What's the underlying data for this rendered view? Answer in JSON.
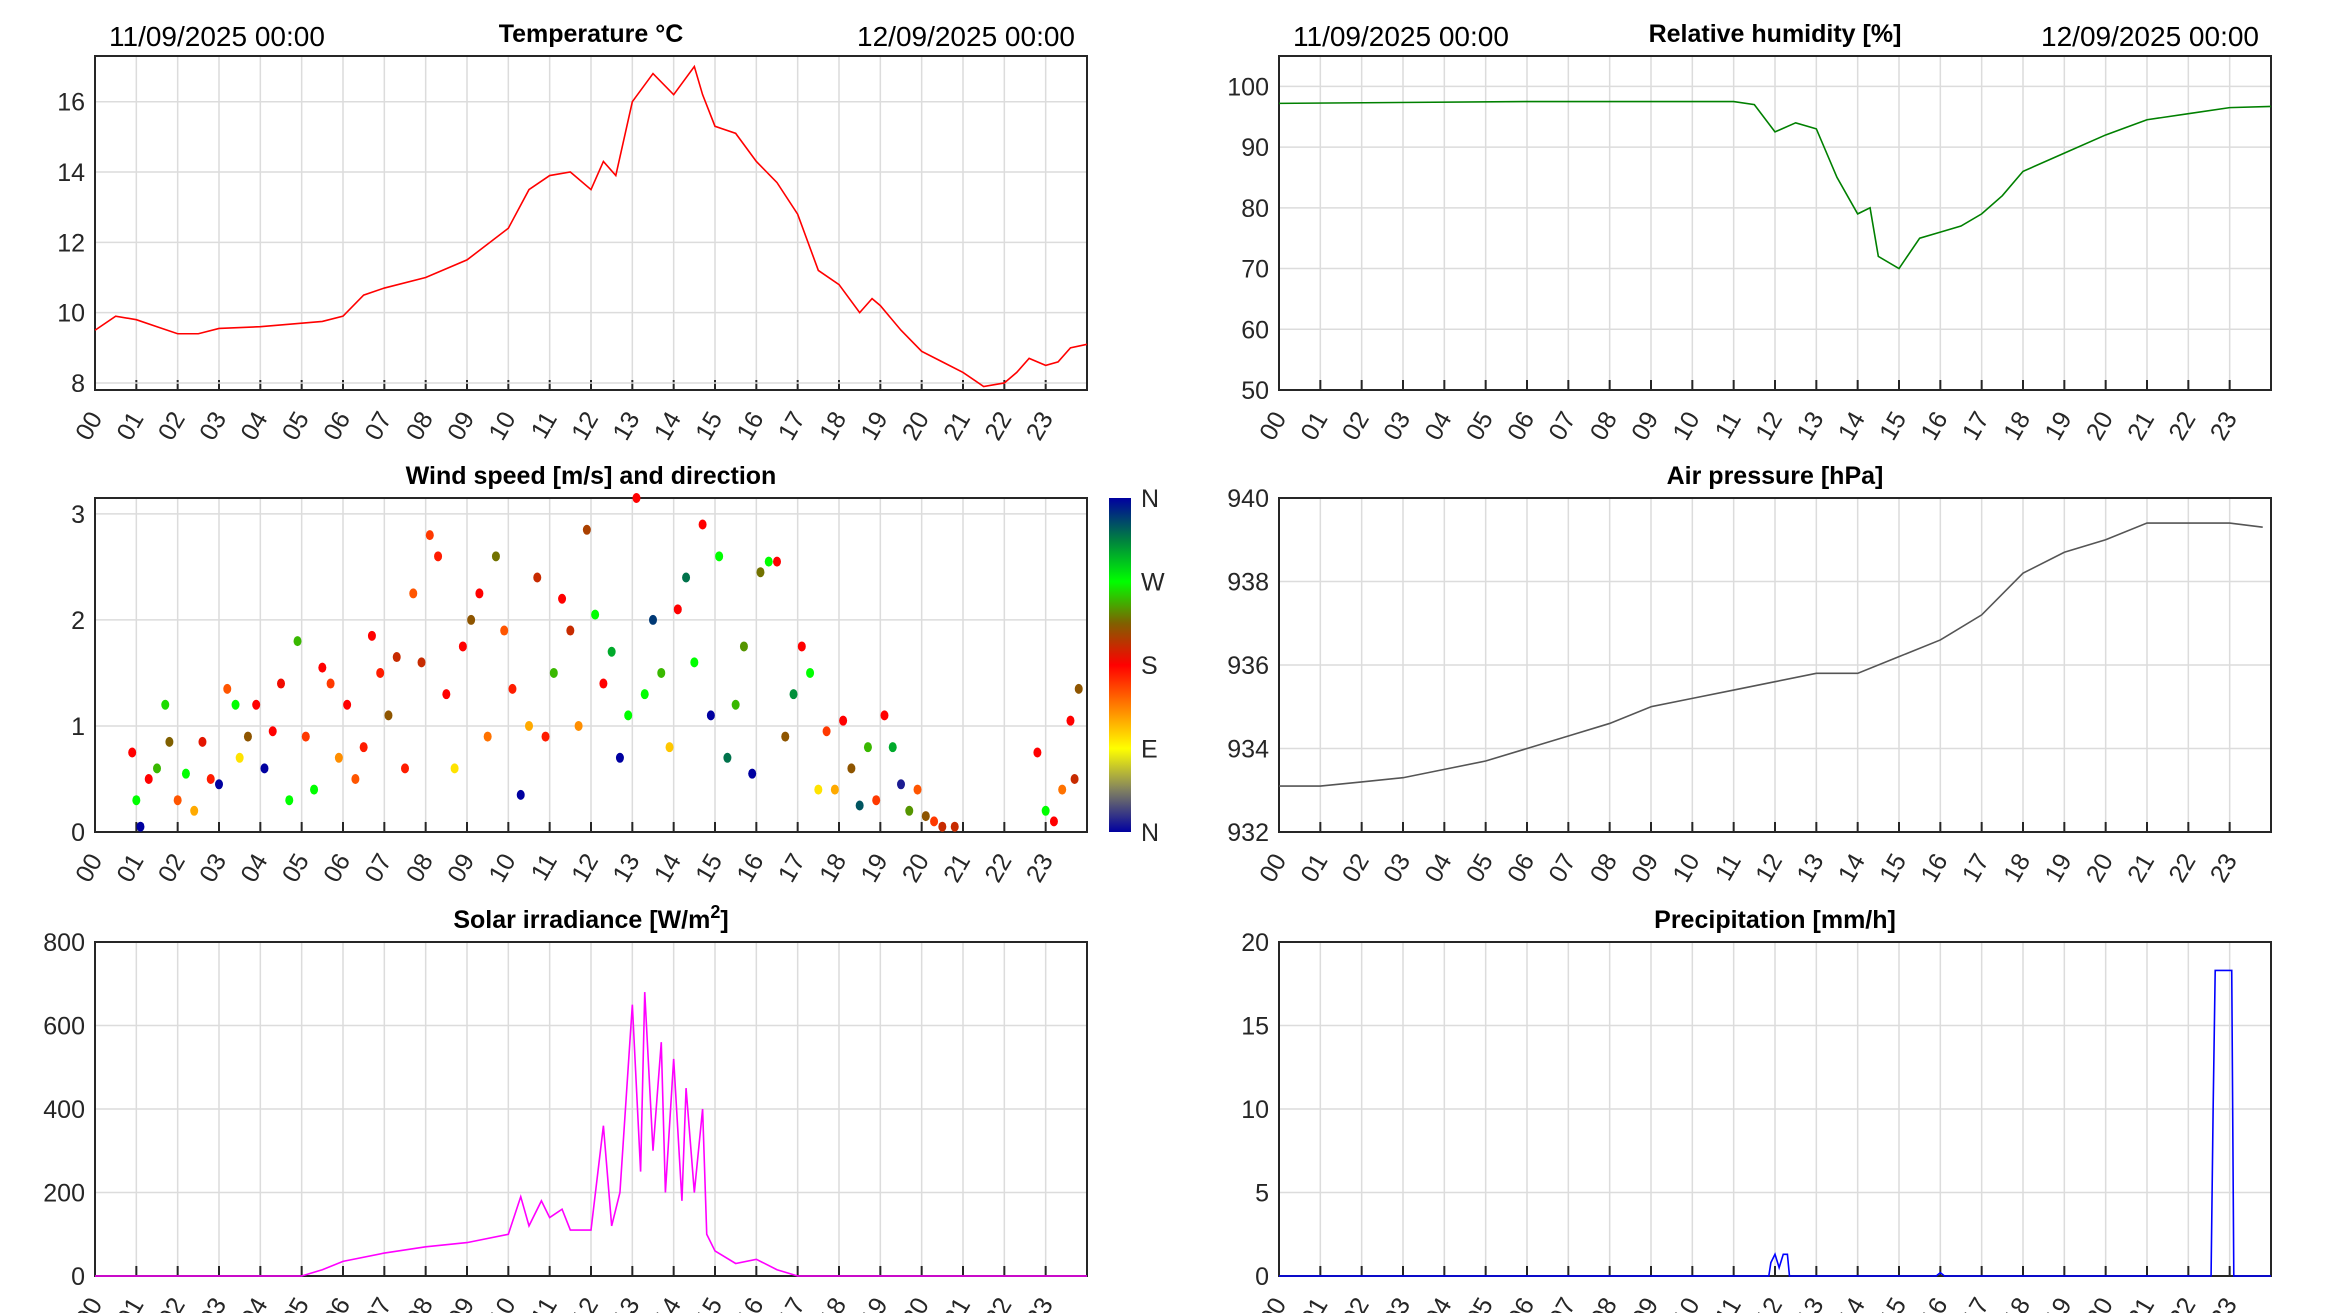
{
  "chart_data": [
    {
      "id": "temp",
      "type": "line",
      "title": "Temperature °C",
      "date_start": "11/09/2025 00:00",
      "date_end": "12/09/2025 00:00",
      "color": "#ff0000",
      "xlim": [
        0,
        24
      ],
      "ylim": [
        7.8,
        17.3
      ],
      "yticks": [
        8,
        10,
        12,
        14,
        16
      ],
      "x": [
        0,
        0.5,
        1,
        1.5,
        2,
        2.5,
        3,
        4,
        5,
        5.5,
        6,
        6.5,
        7,
        8,
        9,
        10,
        10.5,
        11,
        11.5,
        12,
        12.3,
        12.6,
        13,
        13.5,
        14,
        14.5,
        14.7,
        15,
        15.5,
        16,
        16.5,
        17,
        17.5,
        18,
        18.5,
        18.8,
        19,
        19.5,
        20,
        20.5,
        21,
        21.5,
        22,
        22.3,
        22.6,
        23,
        23.3,
        23.6,
        24
      ],
      "y": [
        9.5,
        9.9,
        9.8,
        9.6,
        9.4,
        9.4,
        9.55,
        9.6,
        9.7,
        9.75,
        9.9,
        10.5,
        10.7,
        11.0,
        11.5,
        12.4,
        13.5,
        13.9,
        14.0,
        13.5,
        14.3,
        13.9,
        16.0,
        16.8,
        16.2,
        17.0,
        16.2,
        15.3,
        15.1,
        14.3,
        13.7,
        12.8,
        11.2,
        10.8,
        10.0,
        10.4,
        10.2,
        9.5,
        8.9,
        8.6,
        8.3,
        7.9,
        8.0,
        8.3,
        8.7,
        8.5,
        8.6,
        9.0,
        9.1
      ]
    },
    {
      "id": "hum",
      "type": "line",
      "title": "Relative humidity [%]",
      "date_start": "11/09/2025 00:00",
      "date_end": "12/09/2025 00:00",
      "color": "#008000",
      "xlim": [
        0,
        24
      ],
      "ylim": [
        50,
        105
      ],
      "yticks": [
        50,
        60,
        70,
        80,
        90,
        100
      ],
      "x": [
        0,
        6,
        11,
        11.5,
        12,
        12.5,
        13,
        13.5,
        14,
        14.3,
        14.5,
        15,
        15.5,
        16,
        16.5,
        17,
        17.5,
        18,
        19,
        20,
        21,
        22,
        23,
        24
      ],
      "y": [
        97.2,
        97.5,
        97.5,
        97,
        92.5,
        94,
        93,
        85,
        79,
        80,
        72,
        70,
        75,
        76,
        77,
        79,
        82,
        86,
        89,
        92,
        94.5,
        95.5,
        96.5,
        96.7
      ]
    },
    {
      "id": "wind",
      "type": "scatter",
      "title": "Wind speed [m/s] and direction",
      "xlim": [
        0,
        24
      ],
      "ylim": [
        0,
        3.15
      ],
      "yticks": [
        0,
        1,
        2,
        3
      ],
      "colorbar_labels": [
        "N",
        "E",
        "S",
        "W",
        "N"
      ],
      "points": [
        [
          0.9,
          0.75,
          180
        ],
        [
          1,
          0.3,
          270
        ],
        [
          1.1,
          0.05,
          0
        ],
        [
          1.3,
          0.5,
          180
        ],
        [
          1.5,
          0.6,
          250
        ],
        [
          1.7,
          1.2,
          260
        ],
        [
          1.8,
          0.85,
          225
        ],
        [
          2,
          0.3,
          150
        ],
        [
          2.2,
          0.55,
          270
        ],
        [
          2.4,
          0.2,
          120
        ],
        [
          2.6,
          0.85,
          190
        ],
        [
          2.8,
          0.5,
          170
        ],
        [
          3,
          0.45,
          0
        ],
        [
          3.2,
          1.35,
          150
        ],
        [
          3.4,
          1.2,
          270
        ],
        [
          3.5,
          0.7,
          100
        ],
        [
          3.7,
          0.9,
          220
        ],
        [
          3.9,
          1.2,
          180
        ],
        [
          4.1,
          0.6,
          0
        ],
        [
          4.3,
          0.95,
          180
        ],
        [
          4.5,
          1.4,
          185
        ],
        [
          4.7,
          0.3,
          270
        ],
        [
          4.9,
          1.8,
          250
        ],
        [
          5.1,
          0.9,
          160
        ],
        [
          5.3,
          0.4,
          270
        ],
        [
          5.5,
          1.55,
          180
        ],
        [
          5.7,
          1.4,
          160
        ],
        [
          5.9,
          0.7,
          130
        ],
        [
          6.1,
          1.2,
          180
        ],
        [
          6.3,
          0.5,
          150
        ],
        [
          6.5,
          0.8,
          170
        ],
        [
          6.7,
          1.85,
          180
        ],
        [
          6.9,
          1.5,
          170
        ],
        [
          7.1,
          1.1,
          220
        ],
        [
          7.3,
          1.65,
          200
        ],
        [
          7.5,
          0.6,
          170
        ],
        [
          7.7,
          2.25,
          150
        ],
        [
          7.9,
          1.6,
          200
        ],
        [
          8.1,
          2.8,
          160
        ],
        [
          8.3,
          2.6,
          170
        ],
        [
          8.5,
          1.3,
          180
        ],
        [
          8.7,
          0.6,
          100
        ],
        [
          8.9,
          1.75,
          180
        ],
        [
          9.1,
          2.0,
          220
        ],
        [
          9.3,
          2.25,
          180
        ],
        [
          9.5,
          0.9,
          140
        ],
        [
          9.7,
          2.6,
          230
        ],
        [
          9.9,
          1.9,
          150
        ],
        [
          10.1,
          1.35,
          170
        ],
        [
          10.3,
          0.35,
          0
        ],
        [
          10.5,
          1.0,
          120
        ],
        [
          10.7,
          2.4,
          200
        ],
        [
          10.9,
          0.9,
          170
        ],
        [
          11.1,
          1.5,
          250
        ],
        [
          11.3,
          2.2,
          180
        ],
        [
          11.5,
          1.9,
          200
        ],
        [
          11.7,
          1.0,
          130
        ],
        [
          11.9,
          2.85,
          210
        ],
        [
          12.1,
          2.05,
          270
        ],
        [
          12.3,
          1.4,
          180
        ],
        [
          12.5,
          1.7,
          300
        ],
        [
          12.7,
          0.7,
          0
        ],
        [
          12.9,
          1.1,
          270
        ],
        [
          13.1,
          3.15,
          180
        ],
        [
          13.3,
          1.3,
          270
        ],
        [
          13.5,
          2.0,
          340
        ],
        [
          13.7,
          1.5,
          250
        ],
        [
          13.9,
          0.8,
          110
        ],
        [
          14.1,
          2.1,
          180
        ],
        [
          14.3,
          2.4,
          320
        ],
        [
          14.5,
          1.6,
          270
        ],
        [
          14.7,
          2.9,
          180
        ],
        [
          14.9,
          1.1,
          0
        ],
        [
          15.1,
          2.6,
          270
        ],
        [
          15.3,
          0.7,
          320
        ],
        [
          15.5,
          1.2,
          250
        ],
        [
          15.7,
          1.75,
          240
        ],
        [
          15.9,
          0.55,
          0
        ],
        [
          16.1,
          2.45,
          230
        ],
        [
          16.3,
          2.55,
          270
        ],
        [
          16.5,
          2.55,
          180
        ],
        [
          16.7,
          0.9,
          220
        ],
        [
          16.9,
          1.3,
          310
        ],
        [
          17.1,
          1.75,
          180
        ],
        [
          17.3,
          1.5,
          270
        ],
        [
          17.5,
          0.4,
          100
        ],
        [
          17.7,
          0.95,
          160
        ],
        [
          17.9,
          0.4,
          120
        ],
        [
          18.1,
          1.05,
          180
        ],
        [
          18.3,
          0.6,
          220
        ],
        [
          18.5,
          0.25,
          330
        ],
        [
          18.7,
          0.8,
          250
        ],
        [
          18.9,
          0.3,
          160
        ],
        [
          19.1,
          1.1,
          180
        ],
        [
          19.3,
          0.8,
          300
        ],
        [
          19.5,
          0.45,
          10
        ],
        [
          19.7,
          0.2,
          240
        ],
        [
          19.9,
          0.4,
          150
        ],
        [
          20.1,
          0.15,
          220
        ],
        [
          20.3,
          0.1,
          160
        ],
        [
          20.5,
          0.05,
          200
        ],
        [
          20.8,
          0.05,
          200
        ],
        [
          22.8,
          0.75,
          180
        ],
        [
          23,
          0.2,
          270
        ],
        [
          23.2,
          0.1,
          180
        ],
        [
          23.4,
          0.4,
          140
        ],
        [
          23.6,
          1.05,
          180
        ],
        [
          23.7,
          0.5,
          200
        ],
        [
          23.8,
          1.35,
          220
        ]
      ]
    },
    {
      "id": "pres",
      "type": "line",
      "title": "Air pressure [hPa]",
      "color": "#555555",
      "xlim": [
        0,
        24
      ],
      "ylim": [
        932,
        940
      ],
      "yticks": [
        932,
        934,
        936,
        938,
        940
      ],
      "x": [
        0,
        1,
        2,
        3,
        4,
        5,
        6,
        7,
        8,
        9,
        10,
        11,
        12,
        13,
        14,
        15,
        16,
        17,
        18,
        19,
        20,
        21,
        22,
        23,
        23.8
      ],
      "y": [
        933.1,
        933.1,
        933.2,
        933.3,
        933.5,
        933.7,
        934.0,
        934.3,
        934.6,
        935.0,
        935.2,
        935.4,
        935.6,
        935.8,
        935.8,
        936.2,
        936.6,
        937.2,
        938.2,
        938.7,
        939.0,
        939.4,
        939.4,
        939.4,
        939.3
      ]
    },
    {
      "id": "solar",
      "type": "line",
      "title": "Solar irradiance [W/m",
      "title_sup": "2",
      "title_end": "]",
      "color": "#ff00ff",
      "xlim": [
        0,
        24
      ],
      "ylim": [
        0,
        800
      ],
      "yticks": [
        0,
        200,
        400,
        600,
        800
      ],
      "x": [
        0,
        5,
        5.5,
        6,
        7,
        8,
        9,
        10,
        10.3,
        10.5,
        10.8,
        11,
        11.3,
        11.5,
        12,
        12.3,
        12.5,
        12.7,
        13,
        13.2,
        13.3,
        13.5,
        13.7,
        13.8,
        14,
        14.2,
        14.3,
        14.5,
        14.7,
        14.8,
        15,
        15.5,
        16,
        16.5,
        17,
        24
      ],
      "y": [
        0,
        0,
        15,
        35,
        55,
        70,
        80,
        100,
        190,
        120,
        180,
        140,
        160,
        110,
        110,
        360,
        120,
        200,
        650,
        250,
        680,
        300,
        560,
        200,
        520,
        180,
        450,
        200,
        400,
        100,
        60,
        30,
        40,
        15,
        0,
        0
      ]
    },
    {
      "id": "prec",
      "type": "line",
      "title": "Precipitation [mm/h]",
      "color": "#0000ff",
      "xlim": [
        0,
        24
      ],
      "ylim": [
        0,
        20
      ],
      "yticks": [
        0,
        5,
        10,
        15,
        20
      ],
      "x": [
        0,
        11.85,
        11.9,
        12,
        12.1,
        12.2,
        12.3,
        12.35,
        15.9,
        16,
        16.1,
        22.55,
        22.6,
        22.65,
        23.05,
        23.1,
        24
      ],
      "y": [
        0,
        0,
        0.8,
        1.3,
        0.5,
        1.3,
        1.3,
        0,
        0,
        0.2,
        0,
        0,
        10,
        18.3,
        18.3,
        0,
        0
      ]
    }
  ],
  "x_ticks": [
    "00",
    "01",
    "02",
    "03",
    "04",
    "05",
    "06",
    "07",
    "08",
    "09",
    "10",
    "11",
    "12",
    "13",
    "14",
    "15",
    "16",
    "17",
    "18",
    "19",
    "20",
    "21",
    "22",
    "23"
  ]
}
